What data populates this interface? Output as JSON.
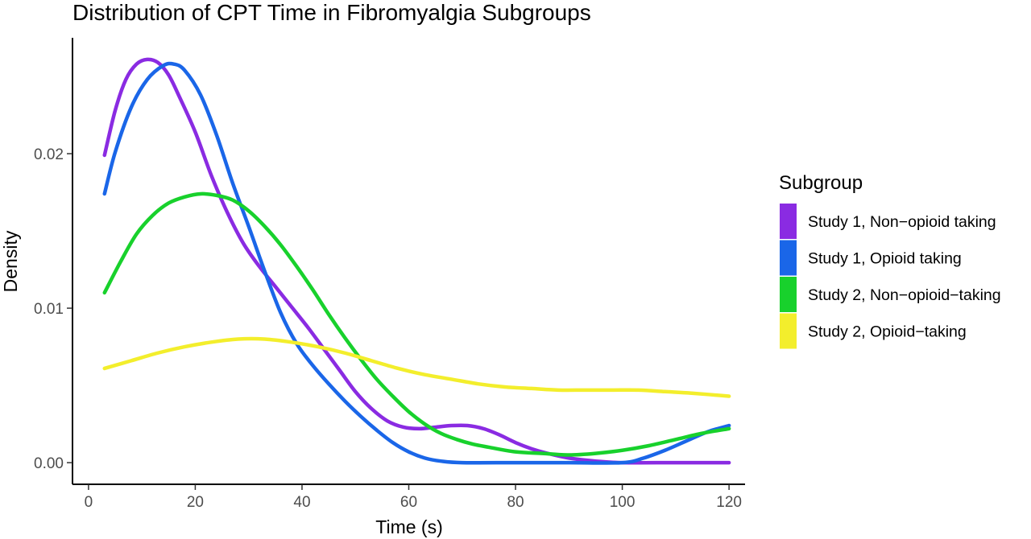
{
  "chart_data": {
    "type": "line",
    "title": "Distribution of CPT Time in Fibromyalgia Subgroups",
    "xlabel": "Time (s)",
    "ylabel": "Density",
    "xlim": [
      -3,
      123
    ],
    "ylim": [
      -0.0014,
      0.0275
    ],
    "xticks": [
      0,
      20,
      40,
      60,
      80,
      100,
      120
    ],
    "xtick_labels": [
      "0",
      "20",
      "40",
      "60",
      "80",
      "100",
      "120"
    ],
    "yticks": [
      0,
      0.01,
      0.02
    ],
    "ytick_labels": [
      "0.00",
      "0.01",
      "0.02"
    ],
    "grid": false,
    "legend": {
      "title": "Subgroup",
      "position": "right"
    },
    "series": [
      {
        "name": "Study 1, Non−opioid taking",
        "color": "#8A2BE2",
        "points": [
          [
            3,
            0.0199
          ],
          [
            5,
            0.0228
          ],
          [
            7,
            0.0248
          ],
          [
            9,
            0.0258
          ],
          [
            11,
            0.0261
          ],
          [
            13,
            0.0259
          ],
          [
            15,
            0.0251
          ],
          [
            17,
            0.0237
          ],
          [
            20,
            0.0214
          ],
          [
            23,
            0.0186
          ],
          [
            26,
            0.0162
          ],
          [
            29,
            0.0142
          ],
          [
            32,
            0.0127
          ],
          [
            35,
            0.0114
          ],
          [
            38,
            0.0101
          ],
          [
            41,
            0.0088
          ],
          [
            44,
            0.0074
          ],
          [
            47,
            0.006
          ],
          [
            50,
            0.0046
          ],
          [
            53,
            0.0035
          ],
          [
            56,
            0.0027
          ],
          [
            59,
            0.0023
          ],
          [
            62,
            0.0022
          ],
          [
            65,
            0.0023
          ],
          [
            68,
            0.0024
          ],
          [
            71,
            0.0024
          ],
          [
            74,
            0.0022
          ],
          [
            77,
            0.0018
          ],
          [
            80,
            0.0013
          ],
          [
            83,
            0.0009
          ],
          [
            86,
            0.0006
          ],
          [
            90,
            0.0003
          ],
          [
            95,
            0.0001
          ],
          [
            100,
            0.0
          ],
          [
            110,
            0.0
          ],
          [
            120,
            0.0
          ]
        ]
      },
      {
        "name": "Study 1, Opioid taking",
        "color": "#1A66E8",
        "points": [
          [
            3,
            0.0174
          ],
          [
            5,
            0.0201
          ],
          [
            8,
            0.023
          ],
          [
            11,
            0.0248
          ],
          [
            14,
            0.0257
          ],
          [
            16,
            0.0258
          ],
          [
            18,
            0.0254
          ],
          [
            21,
            0.0238
          ],
          [
            24,
            0.0212
          ],
          [
            27,
            0.0181
          ],
          [
            30,
            0.0153
          ],
          [
            33,
            0.0124
          ],
          [
            36,
            0.0097
          ],
          [
            39,
            0.0077
          ],
          [
            42,
            0.0063
          ],
          [
            45,
            0.0051
          ],
          [
            48,
            0.004
          ],
          [
            51,
            0.003
          ],
          [
            54,
            0.0021
          ],
          [
            57,
            0.0013
          ],
          [
            60,
            0.0007
          ],
          [
            63,
            0.0003
          ],
          [
            66,
            0.0001
          ],
          [
            70,
            0.0
          ],
          [
            80,
            0.0
          ],
          [
            90,
            0.0
          ],
          [
            100,
            0.0
          ],
          [
            104,
            0.0003
          ],
          [
            108,
            0.0008
          ],
          [
            112,
            0.0014
          ],
          [
            116,
            0.002
          ],
          [
            120,
            0.0024
          ]
        ]
      },
      {
        "name": "Study 2, Non−opioid−taking",
        "color": "#18D12C",
        "points": [
          [
            3,
            0.011
          ],
          [
            6,
            0.013
          ],
          [
            9,
            0.0148
          ],
          [
            12,
            0.016
          ],
          [
            15,
            0.0168
          ],
          [
            18,
            0.0172
          ],
          [
            21,
            0.0174
          ],
          [
            24,
            0.0173
          ],
          [
            27,
            0.017
          ],
          [
            30,
            0.0163
          ],
          [
            33,
            0.0153
          ],
          [
            36,
            0.0141
          ],
          [
            39,
            0.0127
          ],
          [
            42,
            0.0112
          ],
          [
            45,
            0.0096
          ],
          [
            48,
            0.0081
          ],
          [
            51,
            0.0067
          ],
          [
            54,
            0.0054
          ],
          [
            57,
            0.0043
          ],
          [
            60,
            0.0033
          ],
          [
            63,
            0.0025
          ],
          [
            66,
            0.0019
          ],
          [
            69,
            0.0015
          ],
          [
            72,
            0.0012
          ],
          [
            75,
            0.001
          ],
          [
            80,
            0.0007
          ],
          [
            85,
            0.0006
          ],
          [
            90,
            0.0005
          ],
          [
            95,
            0.0006
          ],
          [
            100,
            0.0008
          ],
          [
            105,
            0.0011
          ],
          [
            110,
            0.0015
          ],
          [
            115,
            0.0019
          ],
          [
            120,
            0.0022
          ]
        ]
      },
      {
        "name": "Study 2, Opioid−taking",
        "color": "#F3EE2C",
        "points": [
          [
            3,
            0.0061
          ],
          [
            8,
            0.0066
          ],
          [
            13,
            0.0071
          ],
          [
            18,
            0.0075
          ],
          [
            23,
            0.0078
          ],
          [
            28,
            0.008
          ],
          [
            33,
            0.008
          ],
          [
            38,
            0.0078
          ],
          [
            43,
            0.0075
          ],
          [
            48,
            0.0071
          ],
          [
            53,
            0.0066
          ],
          [
            58,
            0.0061
          ],
          [
            63,
            0.0057
          ],
          [
            68,
            0.0054
          ],
          [
            73,
            0.0051
          ],
          [
            78,
            0.0049
          ],
          [
            83,
            0.0048
          ],
          [
            88,
            0.0047
          ],
          [
            93,
            0.0047
          ],
          [
            98,
            0.0047
          ],
          [
            103,
            0.0047
          ],
          [
            108,
            0.0046
          ],
          [
            113,
            0.0045
          ],
          [
            120,
            0.0043
          ]
        ]
      }
    ]
  }
}
